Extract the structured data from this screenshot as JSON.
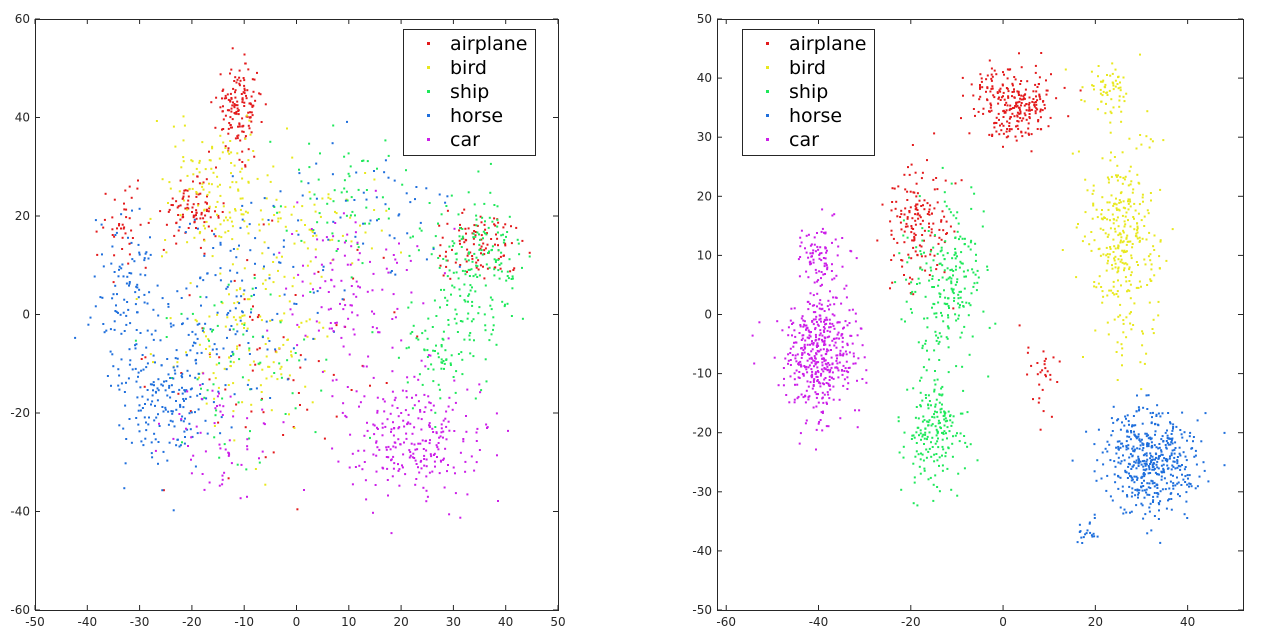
{
  "chart_data": [
    {
      "type": "scatter",
      "title": "",
      "xlabel": "",
      "ylabel": "",
      "xlim": [
        -50,
        50
      ],
      "ylim": [
        -60,
        60
      ],
      "xticks": [
        -50,
        -40,
        -30,
        -20,
        -10,
        0,
        10,
        20,
        30,
        40,
        50
      ],
      "yticks": [
        -60,
        -40,
        -20,
        0,
        20,
        40,
        60
      ],
      "legend_position": "top-right",
      "grid": false,
      "series": [
        {
          "name": "airplane",
          "color": "#e31a1c",
          "clusters": [
            {
              "center": [
                -11,
                42
              ],
              "spread": [
                4,
                8
              ],
              "n": 150
            },
            {
              "center": [
                -20,
                21
              ],
              "spread": [
                5,
                5
              ],
              "n": 90
            },
            {
              "center": [
                35,
                14
              ],
              "spread": [
                8,
                6
              ],
              "n": 100
            },
            {
              "center": [
                -33,
                18
              ],
              "spread": [
                4,
                8
              ],
              "n": 40
            },
            {
              "center": [
                -5,
                -8
              ],
              "spread": [
                20,
                22
              ],
              "n": 70
            }
          ]
        },
        {
          "name": "bird",
          "color": "#e8e81e",
          "clusters": [
            {
              "center": [
                -15,
                25
              ],
              "spread": [
                11,
                14
              ],
              "n": 140
            },
            {
              "center": [
                -8,
                -5
              ],
              "spread": [
                14,
                16
              ],
              "n": 130
            },
            {
              "center": [
                5,
                18
              ],
              "spread": [
                14,
                10
              ],
              "n": 60
            }
          ]
        },
        {
          "name": "ship",
          "color": "#1ee85a",
          "clusters": [
            {
              "center": [
                35,
                10
              ],
              "spread": [
                7,
                14
              ],
              "n": 180
            },
            {
              "center": [
                28,
                -8
              ],
              "spread": [
                9,
                9
              ],
              "n": 80
            },
            {
              "center": [
                10,
                22
              ],
              "spread": [
                12,
                14
              ],
              "n": 70
            },
            {
              "center": [
                -10,
                -10
              ],
              "spread": [
                18,
                18
              ],
              "n": 70
            }
          ]
        },
        {
          "name": "horse",
          "color": "#1f6fdc",
          "clusters": [
            {
              "center": [
                -25,
                -15
              ],
              "spread": [
                10,
                14
              ],
              "n": 220
            },
            {
              "center": [
                -32,
                5
              ],
              "spread": [
                6,
                15
              ],
              "n": 90
            },
            {
              "center": [
                -10,
                5
              ],
              "spread": [
                14,
                18
              ],
              "n": 120
            },
            {
              "center": [
                15,
                20
              ],
              "spread": [
                15,
                12
              ],
              "n": 50
            }
          ]
        },
        {
          "name": "car",
          "color": "#cc1ee8",
          "clusters": [
            {
              "center": [
                22,
                -25
              ],
              "spread": [
                12,
                11
              ],
              "n": 260
            },
            {
              "center": [
                10,
                5
              ],
              "spread": [
                12,
                16
              ],
              "n": 120
            },
            {
              "center": [
                -15,
                -25
              ],
              "spread": [
                10,
                10
              ],
              "n": 60
            }
          ]
        }
      ]
    },
    {
      "type": "scatter",
      "title": "",
      "xlabel": "",
      "ylabel": "",
      "xlim": [
        -62,
        52
      ],
      "ylim": [
        -50,
        50
      ],
      "xticks": [
        -60,
        -40,
        -20,
        0,
        20,
        40
      ],
      "yticks": [
        -50,
        -40,
        -30,
        -20,
        -10,
        0,
        10,
        20,
        30,
        40,
        50
      ],
      "legend_position": "top-left",
      "grid": false,
      "series": [
        {
          "name": "airplane",
          "color": "#e31a1c",
          "clusters": [
            {
              "center": [
                2,
                36
              ],
              "spread": [
                8,
                6
              ],
              "n": 260
            },
            {
              "center": [
                -18,
                15
              ],
              "spread": [
                6,
                9
              ],
              "n": 160
            },
            {
              "center": [
                8,
                -10
              ],
              "spread": [
                4,
                6
              ],
              "n": 30
            }
          ]
        },
        {
          "name": "bird",
          "color": "#e8e81e",
          "clusters": [
            {
              "center": [
                26,
                12
              ],
              "spread": [
                7,
                16
              ],
              "n": 330
            },
            {
              "center": [
                22,
                38
              ],
              "spread": [
                5,
                5
              ],
              "n": 60
            }
          ]
        },
        {
          "name": "ship",
          "color": "#1ee85a",
          "clusters": [
            {
              "center": [
                -12,
                5
              ],
              "spread": [
                8,
                12
              ],
              "n": 230
            },
            {
              "center": [
                -15,
                -20
              ],
              "spread": [
                6,
                8
              ],
              "n": 190
            }
          ]
        },
        {
          "name": "horse",
          "color": "#1f6fdc",
          "clusters": [
            {
              "center": [
                32,
                -25
              ],
              "spread": [
                9,
                8
              ],
              "n": 500
            },
            {
              "center": [
                18,
                -37
              ],
              "spread": [
                3,
                2
              ],
              "n": 20
            }
          ]
        },
        {
          "name": "car",
          "color": "#cc1ee8",
          "clusters": [
            {
              "center": [
                -40,
                -6
              ],
              "spread": [
                7,
                10
              ],
              "n": 460
            },
            {
              "center": [
                -40,
                10
              ],
              "spread": [
                4,
                5
              ],
              "n": 80
            }
          ]
        }
      ]
    }
  ]
}
